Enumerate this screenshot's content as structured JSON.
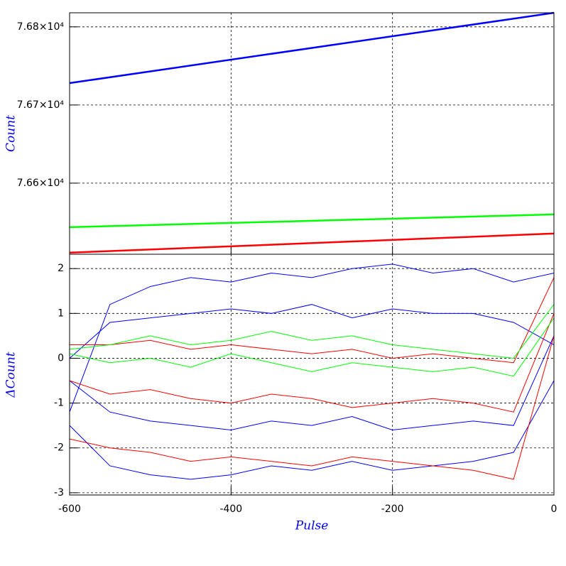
{
  "chart_data": [
    {
      "type": "line",
      "ylabel": "Count",
      "x": [
        -600,
        0
      ],
      "xlim": [
        -600,
        0
      ],
      "xticks": [
        -600,
        -400,
        -200,
        0
      ],
      "ylim": [
        76509,
        76818
      ],
      "yticks": [
        {
          "value": 76600,
          "label": "7.66×10⁴"
        },
        {
          "value": 76700,
          "label": "7.67×10⁴"
        },
        {
          "value": 76800,
          "label": "7.68×10⁴"
        }
      ],
      "grid": true,
      "series": [
        {
          "color": "#0000ff",
          "values": [
            76728,
            76818
          ]
        },
        {
          "color": "#00ff00",
          "values": [
            76543.6,
            76560
          ]
        },
        {
          "color": "#ff0000",
          "values": [
            76511,
            76535.5
          ]
        }
      ]
    },
    {
      "type": "line",
      "ylabel": "ΔCount",
      "xlabel": "Pulse",
      "x": [
        -600,
        -550,
        -500,
        -450,
        -400,
        -350,
        -300,
        -250,
        -200,
        -150,
        -100,
        -50,
        0
      ],
      "xlim": [
        -600,
        0
      ],
      "xticks": [
        -600,
        -400,
        -200,
        0
      ],
      "ylim": [
        -3.05,
        2.32
      ],
      "yticks": [
        -3,
        -2,
        -1,
        0,
        1,
        2
      ],
      "grid": true,
      "series": [
        {
          "color": "#0000ff",
          "values": [
            -1.2,
            1.2,
            1.6,
            1.8,
            1.7,
            1.9,
            1.8,
            2.0,
            2.1,
            1.9,
            2.0,
            1.7,
            1.9
          ]
        },
        {
          "color": "#0000ff",
          "values": [
            0,
            0.8,
            0.9,
            1.0,
            1.1,
            1.0,
            1.2,
            0.9,
            1.1,
            1.0,
            1.0,
            0.8,
            0.3
          ]
        },
        {
          "color": "#0000ff",
          "values": [
            -0.5,
            -1.2,
            -1.4,
            -1.5,
            -1.6,
            -1.4,
            -1.5,
            -1.3,
            -1.6,
            -1.5,
            -1.4,
            -1.5,
            0.5
          ]
        },
        {
          "color": "#0000ff",
          "values": [
            -1.5,
            -2.4,
            -2.6,
            -2.7,
            -2.6,
            -2.4,
            -2.5,
            -2.3,
            -2.5,
            -2.4,
            -2.3,
            -2.1,
            -0.5
          ]
        },
        {
          "color": "#ff0000",
          "values": [
            0.3,
            0.3,
            0.4,
            0.2,
            0.3,
            0.2,
            0.1,
            0.2,
            0.0,
            0.1,
            0.0,
            -0.1,
            1.8
          ]
        },
        {
          "color": "#ff0000",
          "values": [
            -0.5,
            -0.8,
            -0.7,
            -0.9,
            -1.0,
            -0.8,
            -0.9,
            -1.1,
            -1.0,
            -0.9,
            -1.0,
            -1.2,
            1.0
          ]
        },
        {
          "color": "#ff0000",
          "values": [
            -1.8,
            -2.0,
            -2.1,
            -2.3,
            -2.2,
            -2.3,
            -2.4,
            -2.2,
            -2.3,
            -2.4,
            -2.5,
            -2.7,
            0.5
          ]
        },
        {
          "color": "#00ff00",
          "values": [
            0.2,
            0.3,
            0.5,
            0.3,
            0.4,
            0.6,
            0.4,
            0.5,
            0.3,
            0.2,
            0.1,
            0.0,
            1.2
          ]
        },
        {
          "color": "#00ff00",
          "values": [
            0.1,
            -0.1,
            0.0,
            -0.2,
            0.1,
            -0.1,
            -0.3,
            -0.1,
            -0.2,
            -0.3,
            -0.2,
            -0.4,
            0.9
          ]
        }
      ]
    }
  ]
}
